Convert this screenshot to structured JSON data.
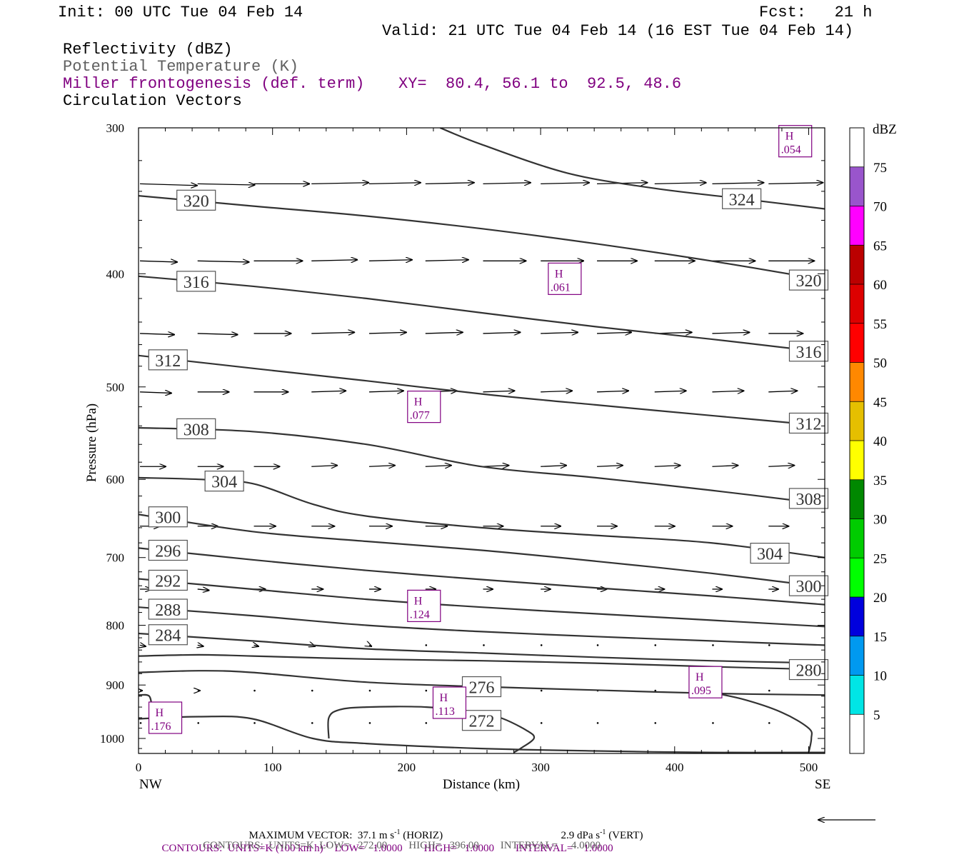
{
  "header": {
    "init": "Init: 00 UTC Tue 04 Feb 14",
    "fcst": "Fcst:   21 h",
    "valid": "Valid: 21 UTC Tue 04 Feb 14 (16 EST Tue 04 Feb 14)",
    "field1": "Reflectivity (dBZ)",
    "field2": "Potential Temperature (K)",
    "field3": "Miller frontogenesis (def. term)",
    "xy": "XY=  80.4, 56.1 to  92.5, 48.6",
    "field4": "Circulation Vectors"
  },
  "colors": {
    "theta": "#333333",
    "frontogenesis": "#800080",
    "vectors": "#000000"
  },
  "chart_data": {
    "type": "line",
    "xlabel": "Distance (km)",
    "ylabel": "Pressure (hPa)",
    "xlim": [
      0,
      512
    ],
    "ylim": [
      1030,
      300
    ],
    "y_scale": "log",
    "x_ticks": [
      "0",
      "100",
      "200",
      "300",
      "400",
      "500"
    ],
    "x_tick_values": [
      0,
      100,
      200,
      300,
      400,
      500
    ],
    "y_ticks": [
      "300",
      "400",
      "500",
      "600",
      "700",
      "800",
      "900",
      "1000"
    ],
    "y_tick_values": [
      300,
      400,
      500,
      600,
      700,
      800,
      900,
      1000
    ],
    "x_end_labels": {
      "left": "NW",
      "right": "SE"
    },
    "theta_isolines": [
      {
        "theta": 320,
        "x": [
          0,
          85,
          170,
          256,
          341,
          427,
          512
        ],
        "p": [
          343,
          350,
          357,
          366,
          377,
          390,
          405
        ],
        "label_at": [
          [
            43,
            346
          ],
          [
            500,
            405
          ]
        ],
        "label": "320"
      },
      {
        "theta": 324,
        "x": [
          225,
          256,
          320,
          385,
          450,
          512
        ],
        "p": [
          300,
          310,
          328,
          338,
          345,
          352
        ],
        "label_at": [
          [
            450,
            345
          ]
        ],
        "label": "324"
      },
      {
        "theta": 316,
        "x": [
          0,
          85,
          170,
          256,
          341,
          427,
          512
        ],
        "p": [
          402,
          410,
          420,
          432,
          444,
          455,
          467
        ],
        "label_at": [
          [
            43,
            406
          ],
          [
            500,
            466
          ]
        ],
        "label": "316"
      },
      {
        "theta": 312,
        "x": [
          0,
          85,
          170,
          256,
          341,
          427,
          512
        ],
        "p": [
          470,
          482,
          494,
          507,
          518,
          529,
          540
        ],
        "label_at": [
          [
            22,
            474
          ],
          [
            500,
            537
          ]
        ],
        "label": "312"
      },
      {
        "theta": 308,
        "x": [
          0,
          85,
          170,
          256,
          341,
          427,
          512
        ],
        "p": [
          542,
          546,
          560,
          585,
          598,
          613,
          630
        ],
        "label_at": [
          [
            43,
            543
          ],
          [
            500,
            623
          ]
        ],
        "label": "308"
      },
      {
        "theta": 304,
        "x": [
          0,
          45,
          85,
          130,
          170,
          256,
          341,
          427,
          512
        ],
        "p": [
          598,
          600,
          605,
          630,
          645,
          660,
          670,
          680,
          700
        ],
        "label_at": [
          [
            64,
            602
          ],
          [
            471,
            694
          ]
        ],
        "label": "304"
      },
      {
        "theta": 300,
        "x": [
          0,
          85,
          170,
          256,
          341,
          427,
          512
        ],
        "p": [
          643,
          665,
          678,
          690,
          705,
          722,
          742
        ],
        "label_at": [
          [
            22,
            646
          ],
          [
            500,
            740
          ]
        ],
        "label": "300"
      },
      {
        "theta": 296,
        "x": [
          0,
          85,
          170,
          256,
          341,
          427,
          512
        ],
        "p": [
          687,
          703,
          718,
          731,
          743,
          755,
          768
        ],
        "label_at": [
          [
            22,
            690
          ]
        ],
        "label": "296"
      },
      {
        "theta": 292,
        "x": [
          0,
          85,
          170,
          256,
          341,
          427,
          512
        ],
        "p": [
          730,
          745,
          760,
          772,
          782,
          792,
          802
        ],
        "label_at": [
          [
            22,
            732
          ]
        ],
        "label": "292"
      },
      {
        "theta": 288,
        "x": [
          0,
          85,
          170,
          256,
          341,
          427,
          512
        ],
        "p": [
          772,
          785,
          800,
          810,
          818,
          825,
          832
        ],
        "label_at": [
          [
            22,
            775
          ]
        ],
        "label": "288"
      },
      {
        "theta": 284,
        "x": [
          0,
          85,
          170,
          256,
          341,
          427,
          512
        ],
        "p": [
          813,
          825,
          838,
          845,
          852,
          858,
          862
        ],
        "label_at": [
          [
            22,
            815
          ]
        ],
        "label": "284"
      },
      {
        "theta": 280,
        "x": [
          0,
          45,
          85,
          170,
          256,
          341,
          427,
          512
        ],
        "p": [
          850,
          848,
          850,
          855,
          858,
          862,
          868,
          873
        ],
        "label_at": [
          [
            500,
            873
          ]
        ],
        "label": "280"
      },
      {
        "theta": 276,
        "x": [
          0,
          45,
          85,
          170,
          256,
          341,
          427,
          512
        ],
        "p": [
          878,
          875,
          878,
          895,
          903,
          909,
          915,
          918
        ],
        "label_at": [
          [
            256,
            903
          ]
        ],
        "label": "276"
      },
      {
        "theta": 272,
        "x": [
          0,
          45,
          85,
          130,
          170,
          256,
          341,
          427,
          512
        ],
        "p": [
          962,
          958,
          962,
          1000,
          1010,
          1020,
          1025,
          1028,
          1028
        ],
        "label_at": [
          [
            256,
            965
          ]
        ],
        "label": "272"
      }
    ],
    "theta_closed": [
      {
        "x": [
          142,
          142,
          150,
          170,
          215,
          250,
          270,
          290,
          295,
          285,
          280
        ],
        "p": [
          1000,
          960,
          945,
          940,
          940,
          950,
          960,
          985,
          1000,
          1020,
          1028
        ],
        "label": "272"
      },
      {
        "x": [
          0,
          8,
          10,
          10
        ],
        "p": [
          918,
          920,
          945,
          965
        ]
      },
      {
        "x": [
          420,
          450,
          480,
          500,
          502,
          500
        ],
        "p": [
          910,
          925,
          950,
          980,
          1000,
          1028
        ]
      }
    ],
    "frontogenesis_highs": [
      {
        "label": "H",
        "value": ".054",
        "x": 490,
        "p": 308
      },
      {
        "label": "H",
        "value": ".061",
        "x": 318,
        "p": 404
      },
      {
        "label": "H",
        "value": ".077",
        "x": 213,
        "p": 520
      },
      {
        "label": "H",
        "value": ".124",
        "x": 213,
        "p": 770
      },
      {
        "label": "H",
        "value": ".113",
        "x": 232,
        "p": 932
      },
      {
        "label": "H",
        "value": ".095",
        "x": 423,
        "p": 895
      },
      {
        "label": "H",
        "value": ".176",
        "x": 20,
        "p": 960
      }
    ],
    "vector_rows": [
      {
        "p": 335,
        "u": [
          1.0,
          1.0,
          0.97,
          1.0,
          0.9,
          0.85,
          0.83,
          0.85,
          0.88,
          0.9,
          0.9,
          0.95
        ],
        "w": [
          0.03,
          0.02,
          0.0,
          -0.02,
          -0.02,
          -0.02,
          -0.02,
          -0.02,
          -0.02,
          -0.02,
          -0.02,
          -0.02
        ]
      },
      {
        "p": 390,
        "u": [
          0.65,
          0.9,
          0.85,
          0.8,
          0.75,
          0.75,
          0.75,
          0.75,
          0.7,
          0.7,
          0.75,
          0.8
        ],
        "w": [
          0.02,
          0.02,
          0.0,
          -0.02,
          -0.02,
          -0.02,
          0.0,
          0.0,
          0.0,
          0.0,
          0.0,
          0.0
        ]
      },
      {
        "p": 450,
        "u": [
          0.6,
          0.7,
          0.65,
          0.75,
          0.65,
          0.65,
          0.65,
          0.65,
          0.6,
          0.65,
          0.65,
          0.6
        ],
        "w": [
          0.02,
          0.02,
          0.0,
          -0.02,
          -0.02,
          -0.02,
          -0.02,
          -0.02,
          -0.02,
          -0.02,
          -0.02,
          0.0
        ]
      },
      {
        "p": 505,
        "u": [
          0.55,
          0.55,
          0.6,
          0.6,
          0.6,
          0.55,
          0.55,
          0.55,
          0.55,
          0.55,
          0.55,
          0.5
        ],
        "w": [
          0.02,
          0.0,
          0.0,
          -0.02,
          -0.02,
          -0.02,
          -0.02,
          -0.02,
          -0.02,
          -0.02,
          -0.02,
          -0.02
        ]
      },
      {
        "p": 585,
        "u": [
          0.45,
          0.45,
          0.45,
          0.45,
          0.45,
          0.45,
          0.45,
          0.45,
          0.45,
          0.45,
          0.45,
          0.45
        ],
        "w": [
          0.0,
          0.0,
          0.0,
          -0.02,
          -0.02,
          -0.02,
          -0.02,
          -0.02,
          -0.02,
          -0.02,
          -0.02,
          -0.02
        ]
      },
      {
        "p": 658,
        "u": [
          0.35,
          0.35,
          0.38,
          0.4,
          0.4,
          0.38,
          0.35,
          0.35,
          0.35,
          0.35,
          0.35,
          0.35
        ],
        "w": [
          0.0,
          0.0,
          0.0,
          0.0,
          0.0,
          0.0,
          0.0,
          0.0,
          0.0,
          0.0,
          0.0,
          0.0
        ]
      },
      {
        "p": 745,
        "u": [
          0.2,
          0.2,
          0.2,
          0.2,
          0.2,
          0.18,
          0.17,
          0.17,
          0.17,
          0.17,
          0.17,
          0.17
        ],
        "w": [
          0.0,
          0.02,
          0.0,
          0.0,
          0.0,
          0.0,
          0.0,
          0.0,
          0.0,
          0.0,
          0.0,
          0.0
        ]
      },
      {
        "p": 832,
        "u": [
          0.1,
          0.1,
          0.08,
          0.06,
          0.04,
          0.03,
          0.02,
          0.02,
          0.02,
          0.02,
          0.02,
          0.02
        ],
        "w": [
          0.02,
          0.02,
          0.02,
          0.02,
          0.02,
          0.0,
          0.0,
          0.0,
          0.0,
          0.0,
          0.0,
          0.0
        ]
      },
      {
        "p": 910,
        "u": [
          0.04,
          0.04,
          0.03,
          0.02,
          0.02,
          0.02,
          0.02,
          0.02,
          0.02,
          0.02,
          0.02,
          0.02
        ],
        "w": [
          0.0,
          0.0,
          0.0,
          0.0,
          0.0,
          0.0,
          0.0,
          0.0,
          0.0,
          0.0,
          0.0,
          0.0
        ]
      },
      {
        "p": 970,
        "u": [
          0.02,
          0.02,
          0.02,
          0.02,
          0.02,
          0.02,
          0.02,
          0.02,
          0.02,
          0.02,
          0.02,
          0.02
        ],
        "w": [
          0.0,
          0.0,
          0.0,
          0.0,
          0.0,
          0.0,
          0.0,
          0.0,
          0.0,
          0.0,
          0.0,
          0.0
        ]
      }
    ],
    "vector_x_km": [
      0,
      43,
      85,
      128,
      171,
      213,
      256,
      299,
      341,
      384,
      427,
      469
    ],
    "colorbar": {
      "title": "dBZ",
      "levels": [
        "5",
        "10",
        "15",
        "20",
        "25",
        "30",
        "35",
        "40",
        "45",
        "50",
        "55",
        "60",
        "65",
        "70",
        "75"
      ],
      "colors": [
        "#ffffff",
        "#00e5e5",
        "#0099f0",
        "#0000dd",
        "#00ff00",
        "#00cc00",
        "#008800",
        "#ffff00",
        "#e5bf00",
        "#ff8800",
        "#ff0000",
        "#dd0000",
        "#bb0000",
        "#ff00ff",
        "#9955cc",
        "#ffffff"
      ]
    }
  },
  "footer": {
    "max_vector_label": "MAXIMUM VECTOR:",
    "max_vector_h": "37.1 m s",
    "max_vector_h_unit": "(HORIZ)",
    "max_vector_v": "2.9 dPa s",
    "max_vector_v_unit": "(VERT)",
    "exp": "-1",
    "contours1": "CONTOURS:  UNITS=K (100 km h)",
    "contours1_rest": "LOW=   1.0000        HIGH=   1.0000        INTERVAL=    1.0000",
    "contours2": "CONTOURS:  UNITS=K  LOW=   272.00        HIGH=   396.00        INTERVAL=     4.0000"
  }
}
